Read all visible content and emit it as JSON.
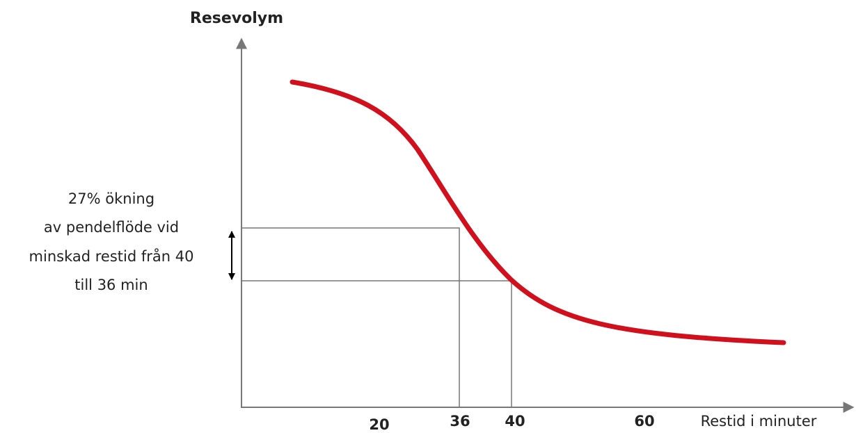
{
  "y_axis_label": "Resevolym",
  "x_axis_label": "Restid i minuter",
  "x_labels": [
    20,
    36,
    40,
    60
  ],
  "annotation": [
    "27% ökning",
    "av pendelflöde vid",
    "minskad restid från 40",
    "till 36 min"
  ]
}
